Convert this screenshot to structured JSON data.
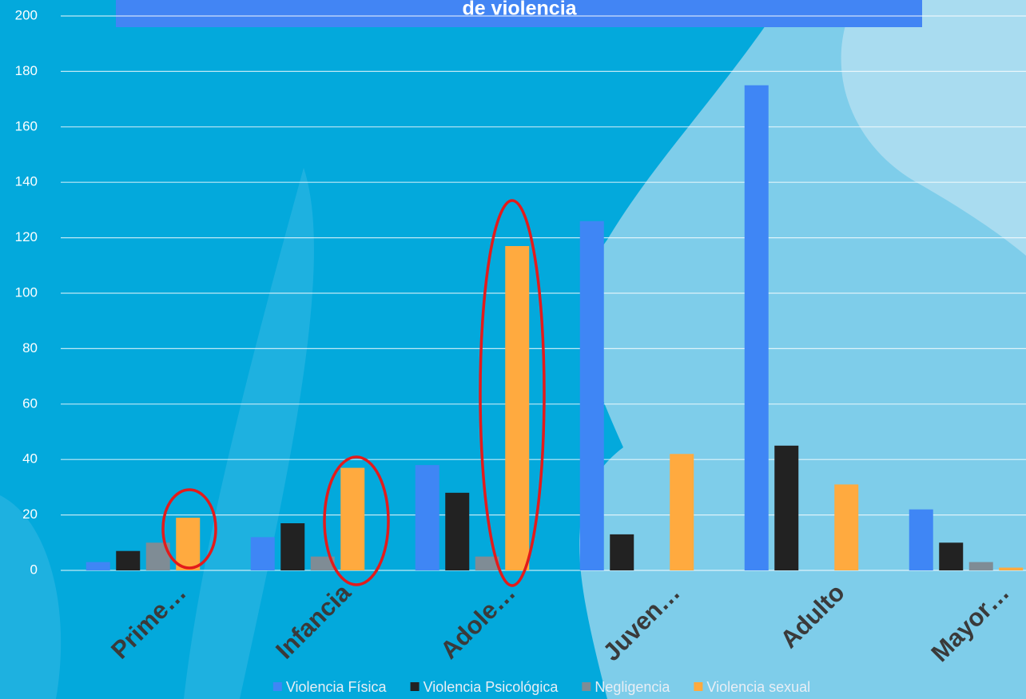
{
  "chart_data": {
    "type": "bar",
    "title": "de violencia",
    "categories": [
      "Prime…",
      "Infancia",
      "Adole…",
      "Juven…",
      "Adulto",
      "Mayor…"
    ],
    "series": [
      {
        "name": "Violencia Física",
        "color": "#3f86f5",
        "values": [
          3,
          12,
          38,
          126,
          175,
          22
        ]
      },
      {
        "name": "Violencia Psicológica",
        "color": "#222222",
        "values": [
          7,
          17,
          28,
          13,
          45,
          10
        ]
      },
      {
        "name": "Negligencia",
        "color": "#7f8c95",
        "values": [
          10,
          5,
          5,
          0,
          0,
          3
        ]
      },
      {
        "name": "Violencia sexual",
        "color": "#ffaa3f",
        "values": [
          19,
          37,
          117,
          42,
          31,
          1
        ]
      }
    ],
    "ylim": [
      0,
      200
    ],
    "yticks": [
      0,
      20,
      40,
      60,
      80,
      100,
      120,
      140,
      160,
      180,
      200
    ],
    "grid": true,
    "legend": "bottom"
  }
}
